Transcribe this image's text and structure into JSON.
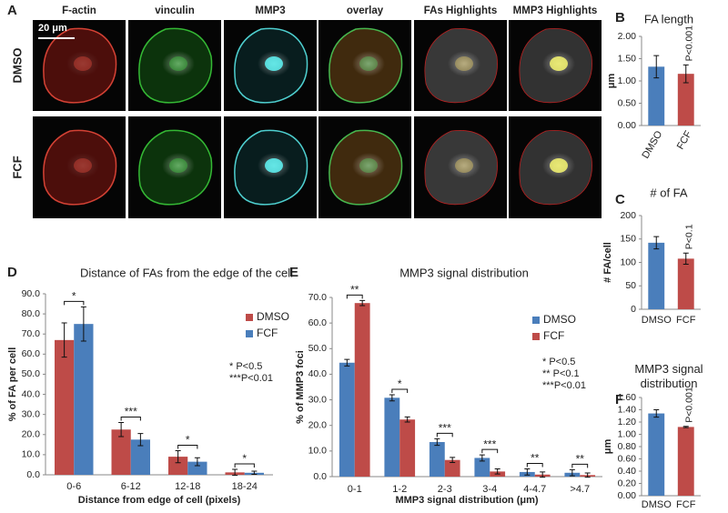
{
  "panel_letters": [
    "A",
    "B",
    "C",
    "D",
    "E",
    "F"
  ],
  "image_panel": {
    "columns": [
      "F-actin",
      "vinculin",
      "MMP3",
      "overlay",
      "FAs Highlights",
      "MMP3 Highlights"
    ],
    "column_colors": [
      "#e0201b",
      "#1a9a1a",
      "#2ab5c0",
      "#000000",
      "#000000",
      "#000000"
    ],
    "rows": [
      "DMSO",
      "FCF"
    ],
    "row_colors": [
      "#4a7ebb",
      "#d9423c"
    ],
    "scale_bar": "20 μm"
  },
  "chart_data": [
    {
      "type": "bar",
      "title": "FA length",
      "y_label": "μm",
      "categories": [
        "DMSO",
        "FCF"
      ],
      "values": [
        1.32,
        1.16
      ],
      "errors": [
        0.25,
        0.2
      ],
      "colors": [
        "#4a7ebb",
        "#be4b48"
      ],
      "annotation": "P<0.001",
      "ylim": [
        0,
        2
      ],
      "yticks": [
        {
          "value": 0,
          "label": "0.00"
        },
        {
          "value": 0.5,
          "label": "0.50"
        },
        {
          "value": 1,
          "label": "1.00"
        },
        {
          "value": 1.5,
          "label": "1.50"
        },
        {
          "value": 2,
          "label": "2.00"
        }
      ]
    },
    {
      "type": "bar",
      "title": "# of FA",
      "y_label": "# FA/cell",
      "categories": [
        "DMSO",
        "FCF"
      ],
      "values": [
        142,
        108
      ],
      "errors": [
        13,
        12
      ],
      "colors": [
        "#4a7ebb",
        "#be4b48"
      ],
      "annotation": "P<0.1",
      "ylim": [
        0,
        200
      ],
      "yticks": [
        0,
        50,
        100,
        150,
        200
      ]
    },
    {
      "type": "grouped_bar",
      "title": "Distance of FAs from the edge of the cell",
      "x_label": "Distance from edge of cell (pixels)",
      "y_label": "% of FA per cell",
      "categories": [
        "0-6",
        "6-12",
        "12-18",
        "18-24"
      ],
      "series": [
        {
          "name": "DMSO",
          "color": "#be4b48",
          "values": [
            67,
            22.5,
            9,
            1.2
          ],
          "errors": [
            8.5,
            3.5,
            3,
            1.5
          ]
        },
        {
          "name": "FCF",
          "color": "#4a7ebb",
          "values": [
            75,
            17.5,
            6.5,
            1
          ],
          "errors": [
            8.5,
            3,
            2,
            0.8
          ]
        }
      ],
      "significance": [
        "*",
        "***",
        "*",
        "*"
      ],
      "notes": [
        "*  P<0.5",
        "***P<0.01"
      ],
      "ylim": [
        0,
        90
      ],
      "yticks": [
        {
          "value": 0,
          "label": "0.0"
        },
        {
          "value": 10,
          "label": "10.0"
        },
        {
          "value": 20,
          "label": "20.0"
        },
        {
          "value": 30,
          "label": "30.0"
        },
        {
          "value": 40,
          "label": "40.0"
        },
        {
          "value": 50,
          "label": "50.0"
        },
        {
          "value": 60,
          "label": "60.0"
        },
        {
          "value": 70,
          "label": "70.0"
        },
        {
          "value": 80,
          "label": "80.0"
        },
        {
          "value": 90,
          "label": "90.0"
        }
      ]
    },
    {
      "type": "grouped_bar",
      "title": "MMP3 signal distribution",
      "x_label": "MMP3 signal distribution (μm)",
      "y_label": "% of MMP3 foci",
      "categories": [
        "0-1",
        "1-2",
        "2-3",
        "3-4",
        "4-4.7",
        ">4.7"
      ],
      "series": [
        {
          "name": "DMSO",
          "color": "#4a7ebb",
          "values": [
            44.5,
            30.8,
            13.5,
            7.3,
            1.8,
            1.5
          ],
          "errors": [
            1.3,
            1.2,
            1.3,
            1.2,
            1.2,
            1.2
          ]
        },
        {
          "name": "FCF",
          "color": "#be4b48",
          "values": [
            67.8,
            22.3,
            6.5,
            2,
            0.8,
            0.6
          ],
          "errors": [
            1,
            1,
            1,
            1,
            1,
            0.8
          ]
        }
      ],
      "significance": [
        "**",
        "*",
        "***",
        "***",
        "**",
        "**"
      ],
      "notes": [
        "*  P<0.5",
        "**  P<0.1",
        "***P<0.01"
      ],
      "ylim": [
        0,
        70
      ],
      "yticks": [
        {
          "value": 0,
          "label": "0.0"
        },
        {
          "value": 10,
          "label": "10.0"
        },
        {
          "value": 20,
          "label": "20.0"
        },
        {
          "value": 30,
          "label": "30.0"
        },
        {
          "value": 40,
          "label": "40.0"
        },
        {
          "value": 50,
          "label": "50.0"
        },
        {
          "value": 60,
          "label": "60.0"
        },
        {
          "value": 70,
          "label": "70.0"
        }
      ]
    },
    {
      "type": "bar",
      "title": "MMP3 signal distribution",
      "y_label": "μm",
      "categories": [
        "DMSO",
        "FCF"
      ],
      "values": [
        1.34,
        1.12
      ],
      "errors": [
        0.06,
        0.01
      ],
      "colors": [
        "#4a7ebb",
        "#be4b48"
      ],
      "annotation": "P<0.001",
      "ylim": [
        0,
        1.6
      ],
      "yticks": [
        {
          "value": 0,
          "label": "0.00"
        },
        {
          "value": 0.2,
          "label": "0.20"
        },
        {
          "value": 0.4,
          "label": "0.40"
        },
        {
          "value": 0.6,
          "label": "0.60"
        },
        {
          "value": 0.8,
          "label": "0.80"
        },
        {
          "value": 1,
          "label": "1.00"
        },
        {
          "value": 1.2,
          "label": "1.20"
        },
        {
          "value": 1.4,
          "label": "1.40"
        },
        {
          "value": 1.6,
          "label": "1.60"
        }
      ]
    }
  ]
}
